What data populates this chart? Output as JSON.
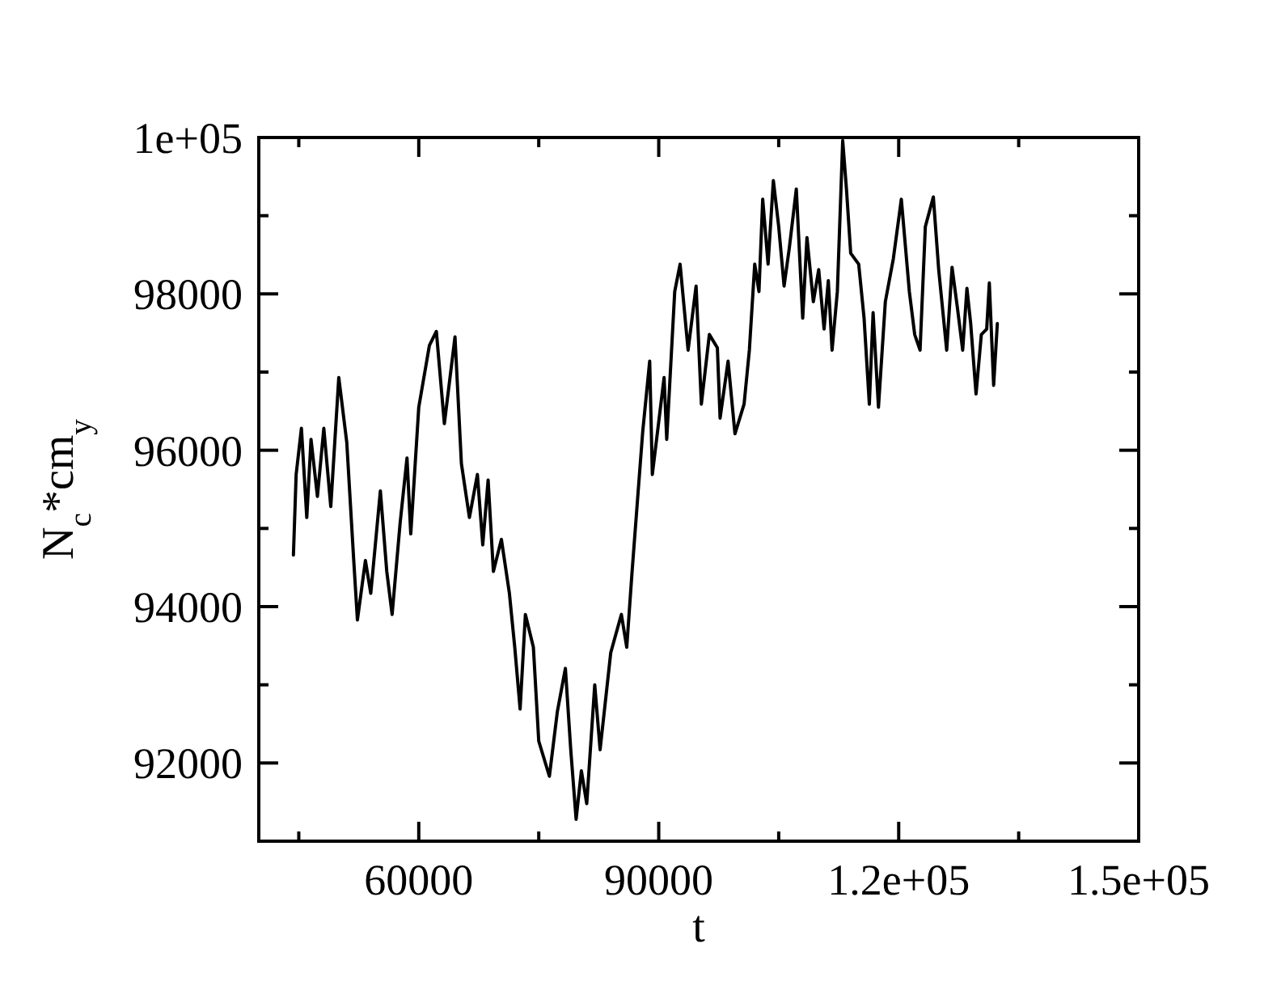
{
  "chart_data": {
    "type": "line",
    "xlabel": "t",
    "ylabel": "N$_{c}$*cm$_{y}$",
    "xlim": [
      40000,
      150000
    ],
    "ylim": [
      91000,
      100000
    ],
    "xticks": [
      {
        "value": 45000,
        "label": null
      },
      60000,
      {
        "value": 75000,
        "label": null
      },
      90000,
      {
        "value": 105000,
        "label": null
      },
      {
        "value": 120000,
        "label": "1.2e+05"
      },
      {
        "value": 135000,
        "label": null
      },
      {
        "value": 150000,
        "label": "1.5e+05"
      }
    ],
    "yticks": [
      92000,
      {
        "value": 93000,
        "label": null
      },
      94000,
      {
        "value": 95000,
        "label": null
      },
      96000,
      {
        "value": 97000,
        "label": null
      },
      98000,
      {
        "value": 99000,
        "label": null
      },
      {
        "value": 100000,
        "label": "1e+05"
      }
    ],
    "grid": false,
    "marker": "none",
    "line_style": "solid",
    "series": [
      {
        "color": "#000000",
        "x": [
          44330,
          44670,
          45330,
          46000,
          46530,
          47330,
          48130,
          49000,
          50000,
          51000,
          51870,
          52330,
          53330,
          54000,
          55200,
          56000,
          56670,
          57670,
          58530,
          59000,
          60000,
          61330,
          62200,
          63200,
          64530,
          65330,
          66330,
          67330,
          68000,
          68670,
          69330,
          70330,
          71330,
          72000,
          72670,
          73330,
          74330,
          75000,
          76330,
          77330,
          78330,
          79000,
          79670,
          80330,
          81000,
          82000,
          82670,
          84000,
          85330,
          86000,
          86670,
          87330,
          88000,
          88870,
          89200,
          90670,
          91000,
          92000,
          92670,
          93670,
          94670,
          95330,
          96330,
          97330,
          97670,
          98670,
          99530,
          100670,
          101330,
          102000,
          102530,
          103000,
          103670,
          104330,
          105000,
          105670,
          106330,
          107200,
          108000,
          108530,
          109330,
          110000,
          110670,
          111200,
          111670,
          112330,
          113000,
          113470,
          114000,
          115000,
          115670,
          116330,
          116800,
          117470,
          118330,
          119330,
          120330,
          121330,
          122000,
          122670,
          123330,
          124330,
          125000,
          126000,
          126670,
          127330,
          128000,
          128530,
          129000,
          129670,
          130330,
          131000,
          131330,
          131870,
          132330
        ],
        "values": [
          94660,
          95690,
          96280,
          95140,
          96140,
          95410,
          96280,
          95280,
          96930,
          96100,
          94590,
          93830,
          94590,
          94170,
          95480,
          94450,
          93900,
          95070,
          95900,
          94930,
          96550,
          97340,
          97520,
          96340,
          97450,
          95830,
          95140,
          95690,
          94790,
          95620,
          94450,
          94860,
          94170,
          93480,
          92690,
          93900,
          93480,
          92280,
          91830,
          92660,
          93210,
          92170,
          91280,
          91900,
          91480,
          93000,
          92170,
          93410,
          93900,
          93480,
          94450,
          95340,
          96240,
          97140,
          95690,
          96930,
          96140,
          98030,
          98380,
          97280,
          98100,
          96590,
          97480,
          97310,
          96410,
          97140,
          96210,
          96590,
          97280,
          98380,
          98030,
          99210,
          98380,
          99450,
          98860,
          98100,
          98590,
          99340,
          97690,
          98720,
          97900,
          98310,
          97550,
          98170,
          97280,
          98030,
          99960,
          99340,
          98520,
          98380,
          97690,
          96590,
          97760,
          96550,
          97900,
          98450,
          99210,
          98030,
          97480,
          97280,
          98860,
          99240,
          98310,
          97280,
          98340,
          97830,
          97280,
          98070,
          97620,
          96720,
          97480,
          97550,
          98140,
          96830,
          97620
        ]
      }
    ]
  }
}
